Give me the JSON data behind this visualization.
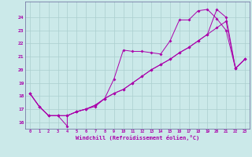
{
  "xlabel": "Windchill (Refroidissement éolien,°C)",
  "xlim": [
    -0.5,
    23.5
  ],
  "ylim": [
    15.5,
    25.2
  ],
  "xticks": [
    0,
    1,
    2,
    3,
    4,
    5,
    6,
    7,
    8,
    9,
    10,
    11,
    12,
    13,
    14,
    15,
    16,
    17,
    18,
    19,
    20,
    21,
    22,
    23
  ],
  "yticks": [
    16,
    17,
    18,
    19,
    20,
    21,
    22,
    23,
    24
  ],
  "bg_color": "#cbe9e9",
  "grid_color": "#aacfcf",
  "line_color": "#aa00aa",
  "line1_x": [
    0,
    1,
    2,
    3,
    4,
    4,
    5,
    6,
    7,
    8,
    9,
    10,
    11,
    12,
    13,
    14,
    15,
    16,
    17,
    18,
    19,
    20,
    21,
    22,
    23
  ],
  "line1_y": [
    18.2,
    17.2,
    16.5,
    16.5,
    15.7,
    16.5,
    16.8,
    17.0,
    17.2,
    17.8,
    19.3,
    21.5,
    21.4,
    21.4,
    21.3,
    21.2,
    22.2,
    23.8,
    23.8,
    24.5,
    24.6,
    23.9,
    23.0,
    20.1,
    20.8
  ],
  "line2_x": [
    0,
    1,
    2,
    3,
    4,
    5,
    6,
    7,
    8,
    9,
    10,
    11,
    12,
    13,
    14,
    15,
    16,
    17,
    18,
    19,
    20,
    21,
    22,
    23
  ],
  "line2_y": [
    18.2,
    17.2,
    16.5,
    16.5,
    16.5,
    16.8,
    17.0,
    17.3,
    17.8,
    18.2,
    18.5,
    19.0,
    19.5,
    20.0,
    20.4,
    20.8,
    21.3,
    21.7,
    22.2,
    22.7,
    23.2,
    23.7,
    20.1,
    20.8
  ],
  "line3_x": [
    0,
    1,
    2,
    3,
    4,
    5,
    6,
    7,
    8,
    9,
    10,
    11,
    12,
    13,
    14,
    15,
    16,
    17,
    18,
    19,
    20,
    21,
    22,
    23
  ],
  "line3_y": [
    18.2,
    17.2,
    16.5,
    16.5,
    16.5,
    16.8,
    17.0,
    17.3,
    17.8,
    18.2,
    18.5,
    19.0,
    19.5,
    20.0,
    20.4,
    20.8,
    21.3,
    21.7,
    22.2,
    22.7,
    24.6,
    24.0,
    20.1,
    20.8
  ]
}
